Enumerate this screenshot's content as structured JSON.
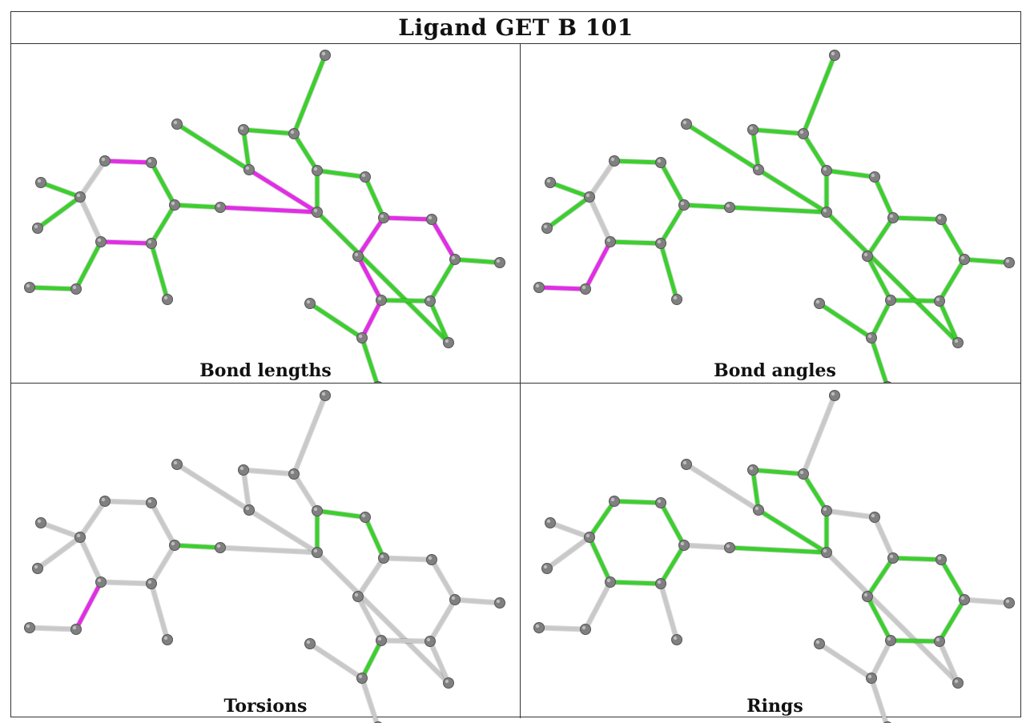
{
  "title": "Ligand GET B 101",
  "colors": {
    "ok": "#3ccf2e",
    "outlier": "#e22de6",
    "neutral": "#c9c9c9",
    "atom": "#7a7a7a"
  },
  "panels": [
    {
      "caption": "Bond lengths",
      "outliers": [
        [
          5,
          6
        ],
        [
          6,
          7
        ],
        [
          1,
          4
        ],
        [
          2,
          3
        ],
        [
          12,
          13
        ],
        [
          12,
          17
        ],
        [
          17,
          18
        ],
        [
          13,
          14
        ],
        [
          16,
          21
        ]
      ],
      "neutral": [
        [
          0,
          5
        ],
        [
          0,
          4
        ]
      ]
    },
    {
      "caption": "Bond angles",
      "outliers": [
        [
          4,
          29
        ],
        [
          29,
          30
        ]
      ],
      "neutral": [
        [
          0,
          5
        ]
      ]
    },
    {
      "caption": "Torsions",
      "green": [
        [
          2,
          3
        ],
        [
          11,
          12
        ],
        [
          10,
          11
        ],
        [
          16,
          21
        ]
      ],
      "outliers": [
        [
          4,
          29
        ]
      ],
      "all_neutral": true
    },
    {
      "caption": "Rings",
      "green": [
        [
          0,
          5
        ],
        [
          5,
          6
        ],
        [
          6,
          7
        ],
        [
          7,
          1
        ],
        [
          1,
          4
        ],
        [
          4,
          0
        ],
        [
          8,
          9
        ],
        [
          9,
          10
        ],
        [
          10,
          15
        ],
        [
          15,
          16
        ],
        [
          16,
          20
        ],
        [
          20,
          8
        ],
        [
          12,
          13
        ],
        [
          13,
          14
        ],
        [
          14,
          17
        ],
        [
          17,
          18
        ],
        [
          18,
          16
        ],
        [
          16,
          21
        ]
      ],
      "ring_sets": [
        [
          [
            0,
            5
          ],
          [
            5,
            6
          ],
          [
            6,
            7
          ],
          [
            7,
            1
          ],
          [
            1,
            4
          ],
          [
            4,
            0
          ]
        ],
        [
          [
            8,
            9
          ],
          [
            9,
            10
          ],
          [
            10,
            15
          ],
          [
            15,
            16
          ],
          [
            16,
            20
          ],
          [
            20,
            8
          ]
        ],
        [
          [
            12,
            13
          ],
          [
            13,
            14
          ],
          [
            14,
            17
          ],
          [
            17,
            18
          ],
          [
            18,
            12
          ]
        ]
      ],
      "all_neutral": true
    }
  ]
}
